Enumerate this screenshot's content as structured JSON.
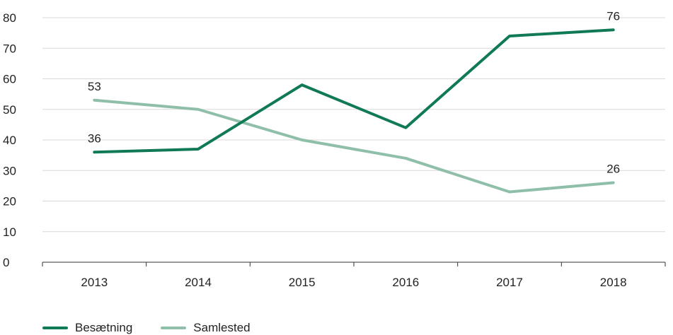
{
  "chart_data": {
    "type": "line",
    "categories": [
      "2013",
      "2014",
      "2015",
      "2016",
      "2017",
      "2018"
    ],
    "series": [
      {
        "name": "Besætning",
        "values": [
          36,
          37,
          58,
          44,
          74,
          76
        ],
        "color": "#0f7a55"
      },
      {
        "name": "Samlested",
        "values": [
          53,
          50,
          40,
          34,
          23,
          26
        ],
        "color": "#8fbfa9"
      }
    ],
    "y_ticks": [
      0,
      10,
      20,
      30,
      40,
      50,
      60,
      70,
      80
    ],
    "ylim": [
      0,
      80
    ],
    "data_labels": [
      {
        "series": 0,
        "index": 0,
        "text": "36"
      },
      {
        "series": 0,
        "index": 5,
        "text": "76"
      },
      {
        "series": 1,
        "index": 0,
        "text": "53"
      },
      {
        "series": 1,
        "index": 5,
        "text": "26"
      }
    ],
    "grid": true,
    "legend_position": "bottom-left"
  }
}
